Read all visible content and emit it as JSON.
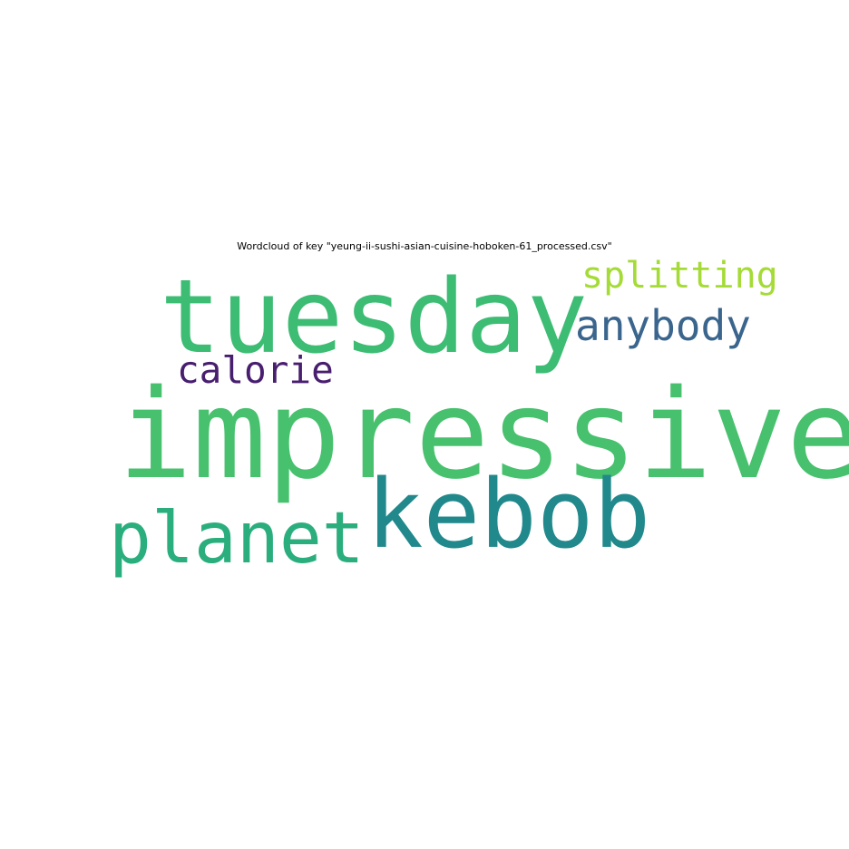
{
  "chart_data": {
    "type": "wordcloud",
    "title": "Wordcloud of key \"yeung-ii-sushi-asian-cuisine-hoboken-61_processed.csv\"",
    "words": [
      {
        "id": "impressive",
        "text": "impressive",
        "weight": 1.0,
        "color": "#48c16e"
      },
      {
        "id": "tuesday",
        "text": "tuesday",
        "weight": 0.82,
        "color": "#3dbc74"
      },
      {
        "id": "kebob",
        "text": "kebob",
        "weight": 0.76,
        "color": "#21898c"
      },
      {
        "id": "planet",
        "text": "planet",
        "weight": 0.57,
        "color": "#2bae7e"
      },
      {
        "id": "anybody",
        "text": "anybody",
        "weight": 0.34,
        "color": "#3a658d"
      },
      {
        "id": "calorie",
        "text": "calorie",
        "weight": 0.3,
        "color": "#481e6f"
      },
      {
        "id": "splitting",
        "text": "splitting",
        "weight": 0.29,
        "color": "#a5db36"
      }
    ]
  }
}
